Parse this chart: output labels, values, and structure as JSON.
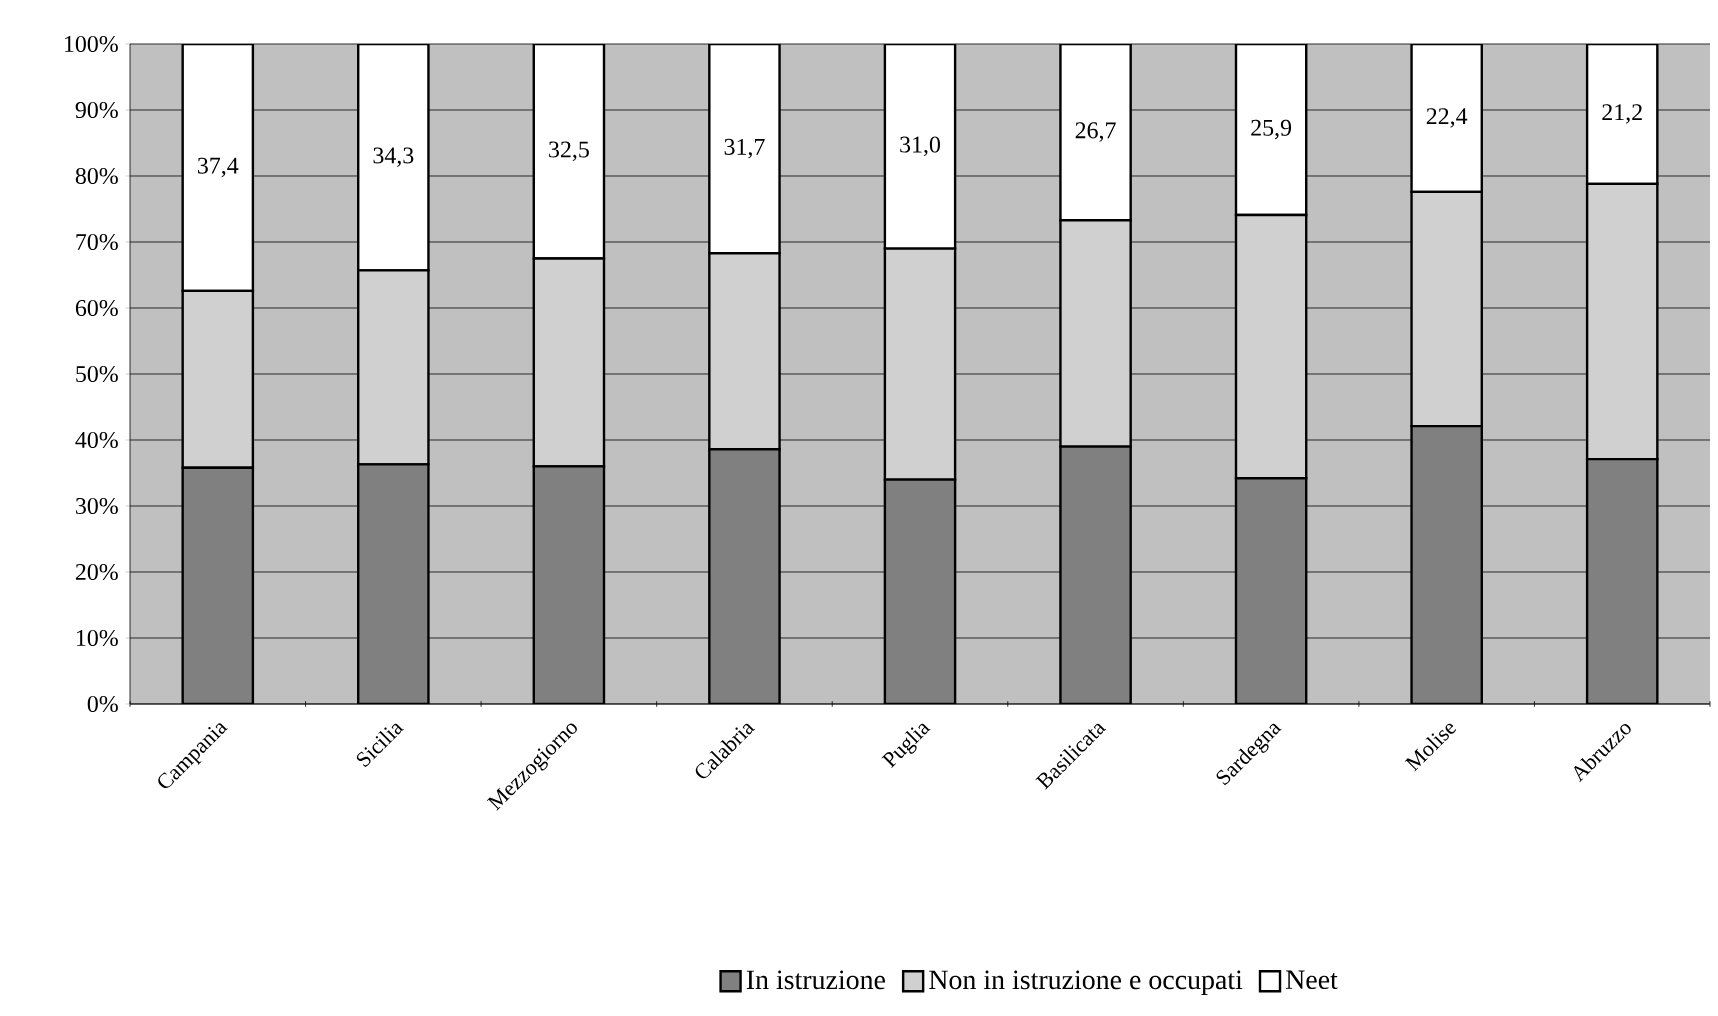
{
  "chart_data": {
    "type": "bar",
    "stacked": true,
    "categories": [
      "Campania",
      "Sicilia",
      "Mezzogiorno",
      "Calabria",
      "Puglia",
      "Basilicata",
      "Sardegna",
      "Molise",
      "Abruzzo"
    ],
    "series": [
      {
        "name": "In istruzione",
        "color": "#808080",
        "values": [
          35.8,
          36.3,
          36.0,
          38.6,
          34.0,
          39.0,
          34.2,
          42.1,
          37.1
        ]
      },
      {
        "name": "Non in istruzione e occupati",
        "color": "#d0d0d0",
        "values": [
          26.8,
          29.4,
          31.5,
          29.7,
          35.0,
          34.3,
          39.9,
          35.5,
          41.7
        ]
      },
      {
        "name": "Neet",
        "color": "#ffffff",
        "values": [
          37.4,
          34.3,
          32.5,
          31.7,
          31.0,
          26.7,
          25.9,
          22.4,
          21.2
        ],
        "value_labels": [
          "37,4",
          "34,3",
          "32,5",
          "31,7",
          "31,0",
          "26,7",
          "25,9",
          "22,4",
          "21,2"
        ]
      }
    ],
    "ylim": [
      0,
      100
    ],
    "yticks": [
      {
        "value": 0,
        "label": "0%"
      },
      {
        "value": 10,
        "label": "10%"
      },
      {
        "value": 20,
        "label": "20%"
      },
      {
        "value": 30,
        "label": "30%"
      },
      {
        "value": 40,
        "label": "40%"
      },
      {
        "value": 50,
        "label": "50%"
      },
      {
        "value": 60,
        "label": "60%"
      },
      {
        "value": 70,
        "label": "70%"
      },
      {
        "value": 80,
        "label": "80%"
      },
      {
        "value": 90,
        "label": "90%"
      },
      {
        "value": 100,
        "label": "100%"
      }
    ],
    "grid": "y",
    "legend": "bottom"
  }
}
